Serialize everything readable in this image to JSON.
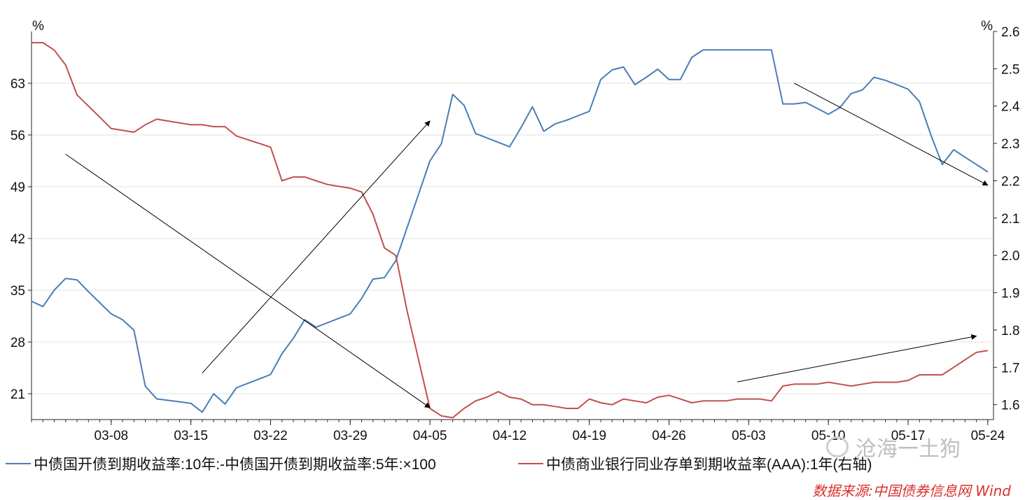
{
  "chart_data": {
    "type": "line",
    "left_axis": {
      "unit": "%",
      "ticks": [
        21,
        28,
        35,
        42,
        49,
        56,
        63
      ],
      "range": [
        17.5,
        70
      ]
    },
    "right_axis": {
      "unit": "%",
      "ticks": [
        1.6,
        1.7,
        1.8,
        1.9,
        2.0,
        2.1,
        2.2,
        2.3,
        2.4,
        2.5,
        2.6
      ],
      "range": [
        1.56,
        2.6
      ]
    },
    "x_axis": {
      "tick_labels": [
        "03-08",
        "03-15",
        "03-22",
        "03-29",
        "04-05",
        "04-12",
        "04-19",
        "04-26",
        "05-03",
        "05-10",
        "05-17",
        "05-24"
      ],
      "tick_days": [
        7,
        14,
        21,
        28,
        35,
        42,
        49,
        56,
        63,
        70,
        77,
        84
      ],
      "day_range": [
        0,
        84.5
      ]
    },
    "series": [
      {
        "name": "中债国开债到期收益率:10年:-中债国开债到期收益率:5年:×100",
        "axis": "left",
        "color": "#4a7db5",
        "points": [
          [
            0,
            33.5
          ],
          [
            1,
            32.8
          ],
          [
            2,
            35.0
          ],
          [
            3,
            36.6
          ],
          [
            4,
            36.4
          ],
          [
            5,
            34.8
          ],
          [
            6,
            33.3
          ],
          [
            7,
            31.8
          ],
          [
            8,
            31.0
          ],
          [
            9,
            29.6
          ],
          [
            10,
            22.0
          ],
          [
            11,
            20.3
          ],
          [
            12,
            20.1
          ],
          [
            13,
            19.9
          ],
          [
            14,
            19.7
          ],
          [
            15,
            18.5
          ],
          [
            16,
            21.0
          ],
          [
            17,
            19.6
          ],
          [
            18,
            21.8
          ],
          [
            19,
            22.4
          ],
          [
            20,
            23.0
          ],
          [
            21,
            23.6
          ],
          [
            22,
            26.4
          ],
          [
            23,
            28.5
          ],
          [
            24,
            31.0
          ],
          [
            25,
            30.0
          ],
          [
            26,
            30.6
          ],
          [
            27,
            31.2
          ],
          [
            28,
            31.8
          ],
          [
            29,
            33.9
          ],
          [
            30,
            36.5
          ],
          [
            31,
            36.7
          ],
          [
            32,
            39.0
          ],
          [
            33,
            43.5
          ],
          [
            34,
            48.0
          ],
          [
            35,
            52.5
          ],
          [
            36,
            54.8
          ],
          [
            37,
            61.5
          ],
          [
            38,
            60.0
          ],
          [
            39,
            56.2
          ],
          [
            40,
            55.6
          ],
          [
            41,
            55.0
          ],
          [
            42,
            54.4
          ],
          [
            43,
            57.0
          ],
          [
            44,
            59.8
          ],
          [
            45,
            56.5
          ],
          [
            46,
            57.5
          ],
          [
            47,
            58.0
          ],
          [
            48,
            58.6
          ],
          [
            49,
            59.2
          ],
          [
            50,
            63.5
          ],
          [
            51,
            64.8
          ],
          [
            52,
            65.2
          ],
          [
            53,
            62.8
          ],
          [
            54,
            63.8
          ],
          [
            55,
            64.9
          ],
          [
            56,
            63.5
          ],
          [
            57,
            63.5
          ],
          [
            58,
            66.5
          ],
          [
            59,
            67.5
          ],
          [
            60,
            67.5
          ],
          [
            61,
            67.5
          ],
          [
            62,
            67.5
          ],
          [
            63,
            67.5
          ],
          [
            64,
            67.5
          ],
          [
            65,
            67.5
          ],
          [
            66,
            60.2
          ],
          [
            67,
            60.2
          ],
          [
            68,
            60.4
          ],
          [
            69,
            59.6
          ],
          [
            70,
            58.8
          ],
          [
            71,
            59.7
          ],
          [
            72,
            61.6
          ],
          [
            73,
            62.1
          ],
          [
            74,
            63.8
          ],
          [
            75,
            63.4
          ],
          [
            76,
            62.8
          ],
          [
            77,
            62.2
          ],
          [
            78,
            60.5
          ],
          [
            79,
            56.0
          ],
          [
            80,
            52.0
          ],
          [
            81,
            54.0
          ],
          [
            82,
            53.0
          ],
          [
            83,
            52.0
          ],
          [
            84,
            51.0
          ]
        ]
      },
      {
        "name": "中债商业银行同业存单到期收益率(AAA):1年(右轴)",
        "axis": "right",
        "color": "#c0504d",
        "points": [
          [
            0,
            2.57
          ],
          [
            1,
            2.57
          ],
          [
            2,
            2.55
          ],
          [
            3,
            2.51
          ],
          [
            4,
            2.43
          ],
          [
            5,
            2.4
          ],
          [
            6,
            2.37
          ],
          [
            7,
            2.34
          ],
          [
            8,
            2.335
          ],
          [
            9,
            2.33
          ],
          [
            10,
            2.35
          ],
          [
            11,
            2.365
          ],
          [
            12,
            2.36
          ],
          [
            13,
            2.355
          ],
          [
            14,
            2.35
          ],
          [
            15,
            2.35
          ],
          [
            16,
            2.345
          ],
          [
            17,
            2.345
          ],
          [
            18,
            2.32
          ],
          [
            19,
            2.31
          ],
          [
            20,
            2.3
          ],
          [
            21,
            2.29
          ],
          [
            22,
            2.2
          ],
          [
            23,
            2.21
          ],
          [
            24,
            2.21
          ],
          [
            25,
            2.2
          ],
          [
            26,
            2.19
          ],
          [
            27,
            2.185
          ],
          [
            28,
            2.18
          ],
          [
            29,
            2.17
          ],
          [
            30,
            2.11
          ],
          [
            31,
            2.02
          ],
          [
            32,
            2.0
          ],
          [
            33,
            1.85
          ],
          [
            34,
            1.72
          ],
          [
            35,
            1.59
          ],
          [
            36,
            1.57
          ],
          [
            37,
            1.565
          ],
          [
            38,
            1.59
          ],
          [
            39,
            1.61
          ],
          [
            40,
            1.62
          ],
          [
            41,
            1.635
          ],
          [
            42,
            1.62
          ],
          [
            43,
            1.615
          ],
          [
            44,
            1.6
          ],
          [
            45,
            1.6
          ],
          [
            46,
            1.595
          ],
          [
            47,
            1.59
          ],
          [
            48,
            1.59
          ],
          [
            49,
            1.615
          ],
          [
            50,
            1.605
          ],
          [
            51,
            1.6
          ],
          [
            52,
            1.615
          ],
          [
            53,
            1.61
          ],
          [
            54,
            1.605
          ],
          [
            55,
            1.62
          ],
          [
            56,
            1.625
          ],
          [
            57,
            1.615
          ],
          [
            58,
            1.605
          ],
          [
            59,
            1.61
          ],
          [
            60,
            1.61
          ],
          [
            61,
            1.61
          ],
          [
            62,
            1.615
          ],
          [
            63,
            1.615
          ],
          [
            64,
            1.615
          ],
          [
            65,
            1.61
          ],
          [
            66,
            1.65
          ],
          [
            67,
            1.655
          ],
          [
            68,
            1.655
          ],
          [
            69,
            1.655
          ],
          [
            70,
            1.66
          ],
          [
            71,
            1.655
          ],
          [
            72,
            1.65
          ],
          [
            73,
            1.655
          ],
          [
            74,
            1.66
          ],
          [
            75,
            1.66
          ],
          [
            76,
            1.66
          ],
          [
            77,
            1.665
          ],
          [
            78,
            1.68
          ],
          [
            79,
            1.68
          ],
          [
            80,
            1.68
          ],
          [
            81,
            1.7
          ],
          [
            82,
            1.72
          ],
          [
            83,
            1.74
          ],
          [
            84,
            1.745
          ]
        ]
      }
    ],
    "annotations": [
      {
        "type": "arrow",
        "axis": "left",
        "from": [
          3,
          53.4
        ],
        "to": [
          35,
          19.1
        ]
      },
      {
        "type": "arrow",
        "axis": "left",
        "from": [
          15,
          23.8
        ],
        "to": [
          35,
          57.9
        ]
      },
      {
        "type": "arrow",
        "axis": "left",
        "from": [
          67,
          63.0
        ],
        "to": [
          84,
          49.2
        ]
      },
      {
        "type": "arrow",
        "axis": "left",
        "from": [
          62,
          22.6
        ],
        "to": [
          83,
          28.8
        ]
      }
    ],
    "grid": "horizontal",
    "legend_position": "bottom"
  },
  "legend": {
    "series_1": "中债国开债到期收益率:10年:-中债国开债到期收益率:5年:×100",
    "series_2": "中债商业银行同业存单到期收益率(AAA):1年(右轴)"
  },
  "source": "数据来源:中国债券信息网 Wind",
  "watermark": "沧海一土狗"
}
